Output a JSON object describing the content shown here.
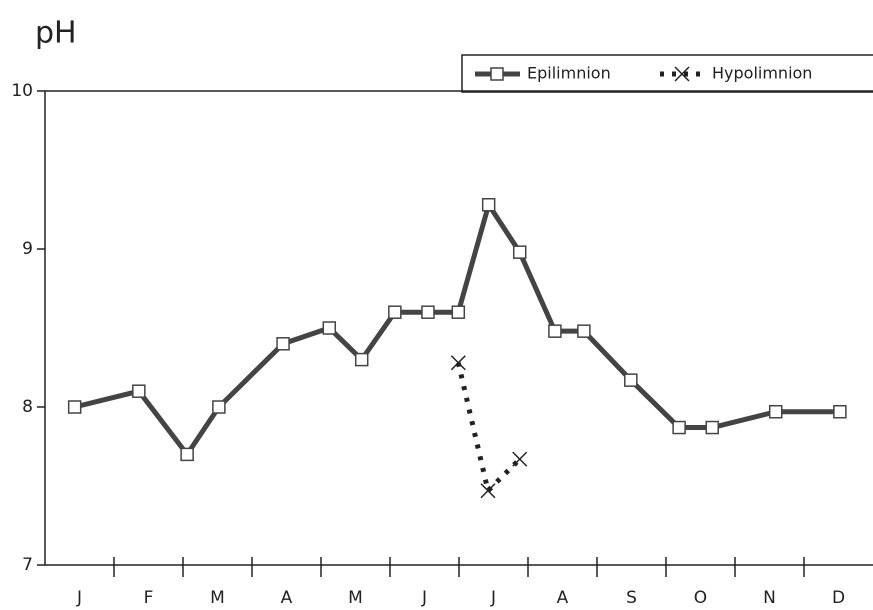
{
  "chart_data": {
    "type": "line",
    "title": "pH",
    "categories": [
      "J",
      "F",
      "M",
      "A",
      "M",
      "J",
      "J",
      "A",
      "S",
      "O",
      "N",
      "D"
    ],
    "xlim": [
      0,
      12
    ],
    "ylim": [
      7,
      10
    ],
    "yticks": [
      7,
      8,
      9,
      10
    ],
    "legend": "top-right",
    "series": [
      {
        "name": "Epilimnion",
        "color": "#444444",
        "marker": "square",
        "linestyle": "solid",
        "x": [
          0.43,
          1.36,
          2.06,
          2.52,
          3.45,
          4.12,
          4.59,
          5.07,
          5.55,
          5.99,
          6.43,
          6.88,
          7.39,
          7.81,
          8.49,
          9.19,
          9.67,
          10.59,
          11.52
        ],
        "values": [
          8.0,
          8.1,
          7.7,
          8.0,
          8.4,
          8.5,
          8.3,
          8.6,
          8.6,
          8.6,
          9.28,
          8.98,
          8.48,
          8.48,
          8.17,
          7.87,
          7.87,
          7.97,
          7.97
        ]
      },
      {
        "name": "Hypolimnion",
        "color": "#222222",
        "marker": "x",
        "linestyle": "dotted",
        "x": [
          5.99,
          6.42,
          6.88
        ],
        "values": [
          8.28,
          7.47,
          7.67
        ]
      }
    ]
  }
}
